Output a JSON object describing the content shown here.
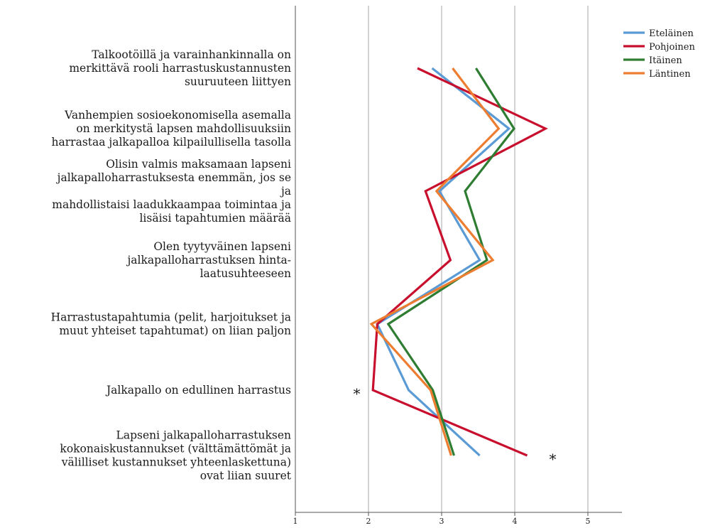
{
  "chart_data": {
    "type": "line",
    "orientation": "horizontal",
    "title": "",
    "xlabel": "",
    "ylabel": "",
    "xlim": [
      1,
      5.5
    ],
    "x_ticks": [
      "1",
      "2",
      "3",
      "4",
      "5"
    ],
    "grid": true,
    "legend_position": "top-right",
    "categories": [
      [
        "Talkootöillä ja varainhankinnalla on",
        "merkittävä rooli harrastuskustannusten",
        "suuruuteen liittyen"
      ],
      [
        "Vanhempien sosioekonomisella asemalla",
        "on merkitystä lapsen mahdollisuuksiin",
        "harrastaa jalkapalloa kilpailullisella tasolla"
      ],
      [
        "Olisin valmis maksamaan lapseni",
        "jalkapalloharrastuksesta enemmän, jos se",
        "ja",
        "mahdollistaisi laadukkaampaa toimintaa ja",
        "lisäisi tapahtumien määrää"
      ],
      [
        "Olen tyytyväinen lapseni",
        "jalkapalloharrastuksen hinta-",
        "laatusuhteeseen"
      ],
      [
        "Harrastustapahtumia (pelit, harjoitukset ja",
        "muut yhteiset tapahtumat) on liian paljon"
      ],
      [
        "Jalkapallo on edullinen harrastus"
      ],
      [
        "Lapseni jalkapalloharrastuksen",
        "kokonaiskustannukset (välttämättömät ja",
        "välilliset kustannukset yhteenlaskettuna)",
        "ovat liian suuret"
      ]
    ],
    "series": [
      {
        "name": "Eteläinen",
        "color": "#5b9bd5",
        "values": [
          2.87,
          3.92,
          2.97,
          3.52,
          2.12,
          2.55,
          3.52
        ]
      },
      {
        "name": "Pohjoinen",
        "color": "#c8102e",
        "values": [
          2.67,
          4.42,
          2.78,
          3.12,
          2.12,
          2.06,
          4.17
        ]
      },
      {
        "name": "Itäinen",
        "color": "#2e7d32",
        "values": [
          3.47,
          3.99,
          3.32,
          3.62,
          2.27,
          2.88,
          3.17
        ]
      },
      {
        "name": "Läntinen",
        "color": "#ed7d31",
        "values": [
          3.15,
          3.78,
          2.93,
          3.7,
          2.04,
          2.85,
          3.13
        ]
      }
    ],
    "annotations": [
      {
        "text": "*",
        "category": 5,
        "x": 1.84
      },
      {
        "text": "*",
        "category": 6,
        "x": 4.52
      }
    ]
  }
}
